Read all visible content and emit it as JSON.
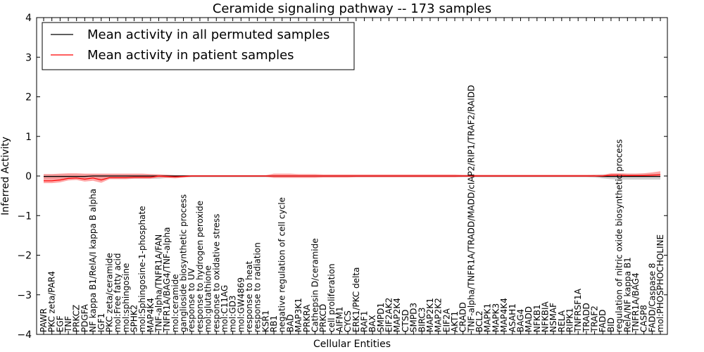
{
  "chart_data": {
    "type": "line",
    "title": "Ceramide signaling pathway -- 173 samples",
    "xlabel": "Cellular Entities",
    "ylabel": "Inferred Activity",
    "ylim": [
      -4,
      4
    ],
    "yticks": [
      -4,
      -3,
      -2,
      -1,
      0,
      1,
      2,
      3,
      4
    ],
    "legend_position": "top-left",
    "colors": {
      "permuted": "#000000",
      "patient": "#ff0000",
      "patient_band": "#ff8080",
      "permuted_band": "#bdbdbd"
    },
    "categories": [
      "PAWR",
      "PKC zeta/PAR4",
      "EGF",
      "TNF",
      "PRKCZ",
      "PDGFA",
      "NF kappa B1/RelA/I kappa B alpha",
      "IGF1",
      "PKC zeta/ceramide",
      "mol:Free fatty acid",
      "mol:sphingosine",
      "SPHK2",
      "mol:Sphingosine-1-phosphate",
      "MAP4K4",
      "TNF-alpha/TNFR1A/FAN",
      "TNFR1A/BAG4/TNF-alpha",
      "mol:ceramide",
      "ganglioside biosynthetic process",
      "response to UV",
      "response to hydrogen peroxide",
      "mol:glutathione",
      "response to oxidative stress",
      "mol:C11AG",
      "mol:GD3",
      "mol:GW4869",
      "response to heat",
      "response to radiation",
      "KSR1",
      "RB1",
      "negative regulation of cell cycle",
      "BAD",
      "MAP3K1",
      "PRKRA",
      "Cathepsin D/ceramide",
      "PRKCD",
      "cell proliferation",
      "AIFM1",
      "CYCS",
      "ERK1/PKC delta",
      "RAF1",
      "BAX",
      "SMPD1",
      "EIF2AK2",
      "MAP2K4",
      "CTSD",
      "SMPD3",
      "BIRC3",
      "MAP2K1",
      "MAP2K2",
      "EIF2A",
      "AKT1",
      "CRADD",
      "TNF-alpha/TNFR1A/TRADD/MADD/cIAP2/RIP1/TRAF2/RAIDD",
      "BCL2",
      "MAPK1",
      "MAPK3",
      "MAP4K4",
      "ASAH1",
      "BAG4",
      "MADD",
      "NFKB1",
      "NFKBIA",
      "NSMAF",
      "RELA",
      "RIPK1",
      "TNFRSF1A",
      "TRADD",
      "TRAF2",
      "FADD",
      "BID",
      "regulation of nitric oxide biosynthetic process",
      "RelA/NF kappa B1",
      "TNFR1A/BAG4",
      "CASP8",
      "FADD/Caspase 8",
      "mol:PHOSPHOCHOLINE"
    ],
    "series": [
      {
        "name": "Mean activity in all permuted samples",
        "values": [
          -0.01,
          -0.01,
          -0.01,
          -0.01,
          -0.01,
          -0.01,
          0,
          0,
          0,
          0,
          0,
          0,
          0,
          0,
          0,
          0,
          0,
          0,
          0,
          0,
          0,
          0,
          0,
          0,
          0,
          0,
          0,
          0,
          0,
          0,
          0,
          0,
          0,
          0,
          0,
          0,
          0,
          0,
          0,
          0,
          0,
          0,
          0,
          0,
          0,
          0,
          0,
          0,
          0,
          0,
          0,
          0,
          0,
          0,
          0,
          0,
          0,
          0,
          0,
          0,
          0,
          0,
          0,
          0,
          0,
          0,
          0,
          0,
          -0.01,
          -0.01,
          -0.01,
          -0.01,
          -0.01,
          -0.01,
          -0.01,
          -0.01
        ],
        "lower": [
          -0.07,
          -0.07,
          -0.07,
          -0.07,
          -0.07,
          -0.07,
          -0.07,
          -0.07,
          -0.07,
          -0.07,
          -0.07,
          -0.07,
          -0.07,
          -0.07,
          -0.07,
          -0.05,
          -0.03,
          -0.03,
          -0.03,
          -0.03,
          -0.03,
          -0.03,
          -0.03,
          -0.03,
          -0.03,
          -0.03,
          -0.03,
          -0.03,
          -0.03,
          -0.03,
          -0.03,
          -0.03,
          -0.03,
          -0.03,
          -0.03,
          -0.03,
          -0.03,
          -0.03,
          -0.03,
          -0.03,
          -0.03,
          -0.03,
          -0.03,
          -0.03,
          -0.03,
          -0.03,
          -0.03,
          -0.03,
          -0.03,
          -0.03,
          -0.03,
          -0.03,
          -0.03,
          -0.03,
          -0.03,
          -0.03,
          -0.03,
          -0.03,
          -0.03,
          -0.03,
          -0.03,
          -0.03,
          -0.03,
          -0.03,
          -0.03,
          -0.03,
          -0.03,
          -0.04,
          -0.06,
          -0.08,
          -0.09,
          -0.09,
          -0.09,
          -0.09,
          -0.09,
          -0.09
        ],
        "upper": [
          0.04,
          0.04,
          0.04,
          0.04,
          0.04,
          0.04,
          0.04,
          0.04,
          0.04,
          0.04,
          0.04,
          0.04,
          0.04,
          0.04,
          0.04,
          0.03,
          0.02,
          0.02,
          0.02,
          0.02,
          0.02,
          0.02,
          0.02,
          0.02,
          0.02,
          0.02,
          0.02,
          0.02,
          0.02,
          0.02,
          0.02,
          0.02,
          0.02,
          0.02,
          0.02,
          0.02,
          0.02,
          0.02,
          0.02,
          0.02,
          0.02,
          0.02,
          0.02,
          0.02,
          0.02,
          0.02,
          0.02,
          0.02,
          0.02,
          0.02,
          0.02,
          0.02,
          0.02,
          0.02,
          0.02,
          0.02,
          0.02,
          0.02,
          0.02,
          0.02,
          0.02,
          0.02,
          0.02,
          0.02,
          0.02,
          0.02,
          0.02,
          0.03,
          0.04,
          0.05,
          0.06,
          0.06,
          0.06,
          0.06,
          0.06,
          0.06
        ]
      },
      {
        "name": "Mean activity in patient samples",
        "values": [
          -0.12,
          -0.12,
          -0.1,
          -0.06,
          -0.05,
          -0.08,
          -0.05,
          -0.1,
          -0.04,
          -0.04,
          -0.04,
          -0.03,
          -0.03,
          -0.03,
          0,
          -0.01,
          -0.02,
          -0.01,
          0,
          0,
          0,
          0,
          0,
          0,
          0,
          0,
          0,
          0,
          0,
          0,
          0,
          0,
          0,
          0,
          0,
          0,
          0,
          0,
          0,
          0,
          0,
          0,
          0,
          0,
          0,
          0,
          0,
          0,
          0,
          0,
          0,
          0,
          0,
          0,
          0,
          0,
          0,
          0,
          0,
          0,
          0,
          0,
          0,
          0,
          0,
          0,
          0,
          0,
          0,
          0.02,
          0.02,
          0.01,
          0.01,
          0.01,
          0.02,
          0.03
        ],
        "lower": [
          -0.18,
          -0.18,
          -0.16,
          -0.11,
          -0.1,
          -0.14,
          -0.12,
          -0.17,
          -0.08,
          -0.08,
          -0.08,
          -0.07,
          -0.07,
          -0.07,
          -0.04,
          -0.05,
          -0.06,
          -0.04,
          -0.02,
          -0.02,
          -0.02,
          -0.02,
          -0.02,
          -0.02,
          -0.02,
          -0.02,
          -0.02,
          -0.02,
          -0.05,
          -0.05,
          -0.05,
          -0.05,
          -0.05,
          -0.05,
          -0.04,
          -0.04,
          -0.04,
          -0.04,
          -0.03,
          -0.03,
          -0.03,
          -0.03,
          -0.03,
          -0.03,
          -0.03,
          -0.03,
          -0.03,
          -0.03,
          -0.03,
          -0.03,
          -0.03,
          -0.02,
          -0.02,
          -0.02,
          -0.02,
          -0.02,
          -0.02,
          -0.02,
          -0.02,
          -0.02,
          -0.02,
          -0.02,
          -0.02,
          -0.02,
          -0.02,
          -0.02,
          -0.02,
          -0.02,
          -0.02,
          -0.02,
          -0.02,
          -0.02,
          -0.02,
          -0.02,
          -0.02,
          -0.02
        ],
        "upper": [
          0.05,
          0.05,
          0.06,
          0.07,
          0.07,
          0.06,
          0.06,
          0.06,
          0.06,
          0.06,
          0.06,
          0.06,
          0.06,
          0.05,
          0.04,
          0.03,
          0.02,
          0.02,
          0.02,
          0.02,
          0.02,
          0.02,
          0.02,
          0.02,
          0.02,
          0.02,
          0.02,
          0.02,
          0.06,
          0.06,
          0.06,
          0.05,
          0.05,
          0.05,
          0.04,
          0.04,
          0.04,
          0.04,
          0.04,
          0.04,
          0.04,
          0.04,
          0.04,
          0.04,
          0.04,
          0.04,
          0.04,
          0.04,
          0.04,
          0.04,
          0.04,
          0.03,
          0.03,
          0.03,
          0.03,
          0.03,
          0.03,
          0.03,
          0.03,
          0.03,
          0.03,
          0.03,
          0.03,
          0.03,
          0.03,
          0.03,
          0.03,
          0.03,
          0.03,
          0.07,
          0.07,
          0.06,
          0.06,
          0.07,
          0.09,
          0.12
        ]
      }
    ]
  }
}
